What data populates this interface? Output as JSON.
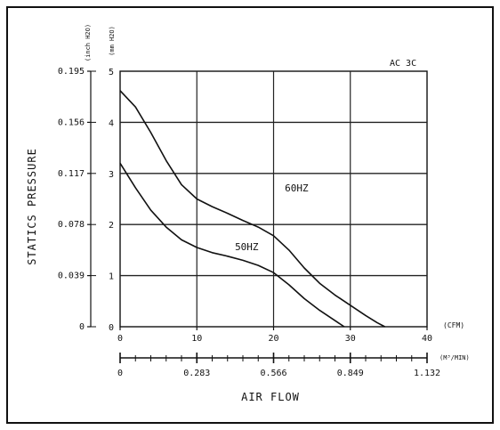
{
  "chart_data": {
    "type": "line",
    "annotation": "AC 3C",
    "xlabel": "AIR FLOW",
    "ylabel": "STATICS PRESSURE",
    "y_unit_inch": "(inch H2O)",
    "y_unit_mm": "(mm H2O)",
    "x_unit_cfm": "(CFM)",
    "x_unit_m3": "(M³/MIN)",
    "xlim": [
      0,
      40
    ],
    "ylim": [
      0,
      5
    ],
    "x_ticks": [
      0,
      10,
      20,
      30,
      40
    ],
    "x_tick_labels": [
      "0",
      "10",
      "20",
      "30",
      "40"
    ],
    "y_ticks": [
      0,
      1,
      2,
      3,
      4,
      5
    ],
    "y_tick_labels": [
      "0",
      "1",
      "2",
      "3",
      "4",
      "5"
    ],
    "y_inch_tick_labels": [
      "0",
      "0.039",
      "0.078",
      "0.117",
      "0.156",
      "0.195"
    ],
    "m3_tick_labels": [
      "0",
      "0.283",
      "0.566",
      "0.849",
      "1.132"
    ],
    "grid": true,
    "series": [
      {
        "name": "60HZ",
        "points": [
          [
            0,
            4.62
          ],
          [
            2,
            4.3
          ],
          [
            4,
            3.8
          ],
          [
            6,
            3.25
          ],
          [
            8,
            2.78
          ],
          [
            10,
            2.5
          ],
          [
            12,
            2.35
          ],
          [
            14,
            2.22
          ],
          [
            16,
            2.08
          ],
          [
            18,
            1.95
          ],
          [
            20,
            1.78
          ],
          [
            22,
            1.5
          ],
          [
            24,
            1.15
          ],
          [
            26,
            0.85
          ],
          [
            28,
            0.62
          ],
          [
            30,
            0.42
          ],
          [
            32,
            0.22
          ],
          [
            33.5,
            0.08
          ],
          [
            34.5,
            0
          ]
        ]
      },
      {
        "name": "50HZ",
        "points": [
          [
            0,
            3.2
          ],
          [
            2,
            2.72
          ],
          [
            4,
            2.28
          ],
          [
            6,
            1.95
          ],
          [
            8,
            1.7
          ],
          [
            10,
            1.55
          ],
          [
            12,
            1.45
          ],
          [
            14,
            1.38
          ],
          [
            16,
            1.3
          ],
          [
            18,
            1.2
          ],
          [
            20,
            1.06
          ],
          [
            22,
            0.82
          ],
          [
            24,
            0.55
          ],
          [
            26,
            0.32
          ],
          [
            28,
            0.12
          ],
          [
            29.2,
            0
          ]
        ]
      }
    ]
  }
}
